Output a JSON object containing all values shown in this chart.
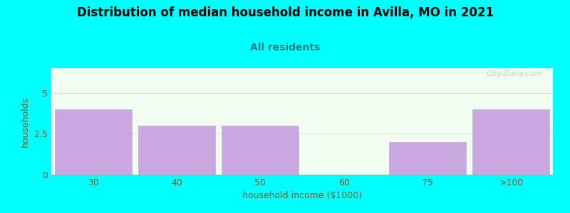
{
  "title": "Distribution of median household income in Avilla, MO in 2021",
  "subtitle": "All residents",
  "xlabel": "household income ($1000)",
  "ylabel": "households",
  "background_color": "#00FFFF",
  "plot_bg_color": "#f0fdf0",
  "bar_color": "#c9a8e0",
  "categories": [
    "30",
    "40",
    "50",
    "60",
    "75",
    ">100"
  ],
  "values": [
    4,
    3,
    3,
    0,
    2,
    4
  ],
  "ylim": [
    0,
    6.5
  ],
  "yticks": [
    0,
    2.5,
    5
  ],
  "title_fontsize": 12,
  "subtitle_fontsize": 10,
  "subtitle_color": "#008080",
  "axis_label_color": "#7a5c2e",
  "tick_color": "#7a5c2e",
  "watermark": "City-Data.com",
  "watermark_color": "#c0c0c0"
}
